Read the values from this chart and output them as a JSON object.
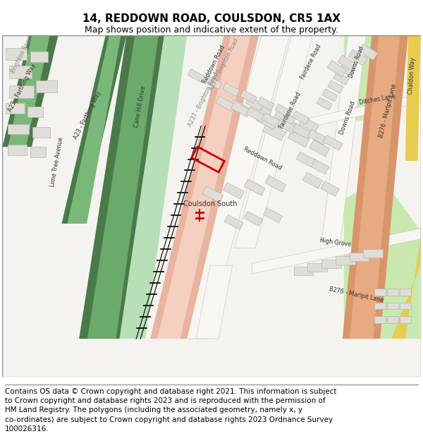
{
  "title": "14, REDDOWN ROAD, COULSDON, CR5 1AX",
  "subtitle": "Map shows position and indicative extent of the property.",
  "footer_line1": "Contains OS data © Crown copyright and database right 2021. This information is subject",
  "footer_line2": "to Crown copyright and database rights 2023 and is reproduced with the permission of",
  "footer_line3": "HM Land Registry. The polygons (including the associated geometry, namely x, y",
  "footer_line4": "co-ordinates) are subject to Crown copyright and database rights 2023 Ordnance Survey",
  "footer_line5": "100026316.",
  "title_fontsize": 11,
  "subtitle_fontsize": 9,
  "footer_fontsize": 7.5
}
